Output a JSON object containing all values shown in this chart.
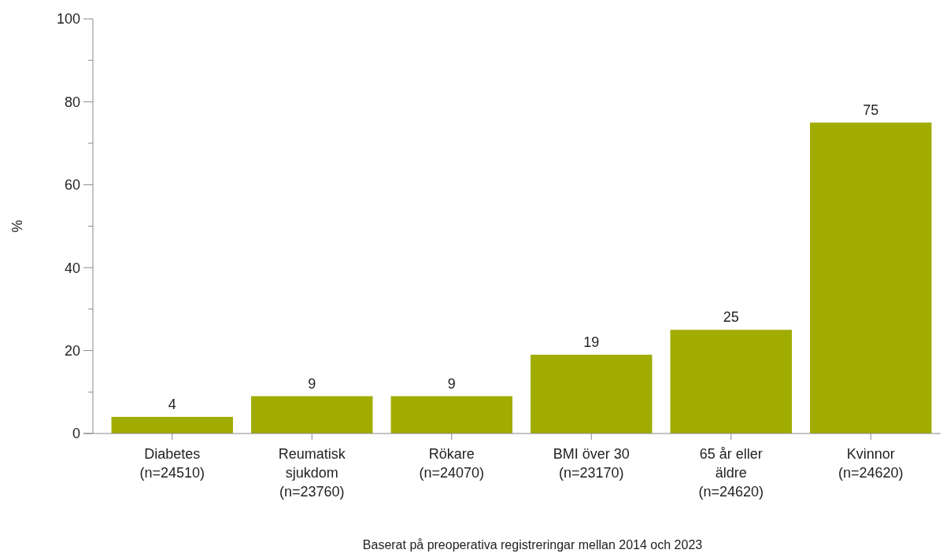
{
  "chart_data": {
    "type": "bar",
    "xlabel": "Baserat på preoperativa registreringar mellan 2014 och 2023",
    "ylabel": "%",
    "categories": [
      "Diabetes\n(n=24510)",
      "Reumatisk\nsjukdom\n(n=23760)",
      "Rökare\n(n=24070)",
      "BMI över 30\n(n=23170)",
      "65 år eller\näldre\n(n=24620)",
      "Kvinnor\n(n=24620)"
    ],
    "values": [
      4,
      9,
      9,
      19,
      25,
      75
    ],
    "color": "#a0ac00",
    "data_labels": true,
    "ylim": [
      0,
      100
    ],
    "yticks": [
      0,
      {
        "value": 10,
        "label": null
      },
      20,
      {
        "value": 30,
        "label": null
      },
      40,
      {
        "value": 50,
        "label": null
      },
      60,
      {
        "value": 70,
        "label": null
      },
      80,
      {
        "value": 90,
        "label": null
      },
      100
    ]
  }
}
